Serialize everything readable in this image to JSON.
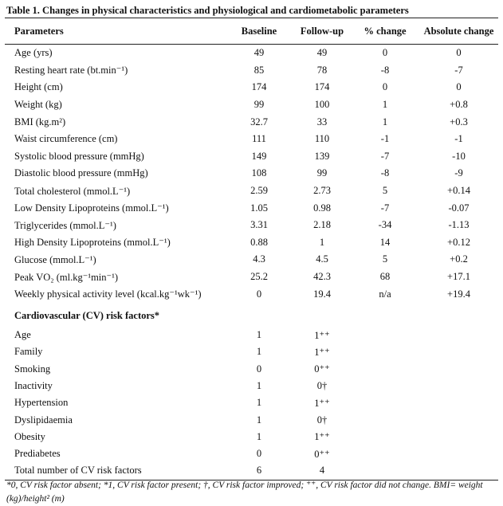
{
  "title": "Table 1. Changes in physical characteristics and physiological and cardiometabolic parameters",
  "header": [
    "Parameters",
    "Baseline",
    "Follow-up",
    "% change",
    "Absolute change"
  ],
  "rows": [
    [
      "Age (yrs)",
      "49",
      "49",
      "0",
      "0"
    ],
    [
      "Resting heart rate (bt.min⁻¹)",
      "85",
      "78",
      "-8",
      "-7"
    ],
    [
      "Height (cm)",
      "174",
      "174",
      "0",
      "0"
    ],
    [
      "Weight (kg)",
      "99",
      "100",
      "1",
      "+0.8"
    ],
    [
      "BMI (kg.m²)",
      "32.7",
      "33",
      "1",
      "+0.3"
    ],
    [
      "Waist circumference (cm)",
      "111",
      "110",
      "-1",
      "-1"
    ],
    [
      "Systolic blood pressure (mmHg)",
      "149",
      "139",
      "-7",
      "-10"
    ],
    [
      "Diastolic blood pressure (mmHg)",
      "108",
      "99",
      "-8",
      "-9"
    ],
    [
      "Total cholesterol (mmol.L⁻¹)",
      "2.59",
      "2.73",
      "5",
      "+0.14"
    ],
    [
      "Low Density Lipoproteins (mmol.L⁻¹)",
      "1.05",
      "0.98",
      "-7",
      "-0.07"
    ],
    [
      "Triglycerides (mmol.L⁻¹)",
      "3.31",
      "2.18",
      "-34",
      "-1.13"
    ],
    [
      "High Density Lipoproteins (mmol.L⁻¹)",
      "0.88",
      "1",
      "14",
      "+0.12"
    ],
    [
      "Glucose (mmol.L⁻¹)",
      "4.3",
      "4.5",
      "5",
      "+0.2"
    ],
    [
      "Peak VO₂ (ml.kg⁻¹min⁻¹)",
      "25.2",
      "42.3",
      "68",
      "+17.1"
    ],
    [
      "Weekly physical activity level (kcal.kg⁻¹wk⁻¹)",
      "0",
      "19.4",
      "n/a",
      "+19.4"
    ]
  ],
  "section_title": "Cardiovascular (CV) risk factors*",
  "risk_rows": [
    [
      "Age",
      "1",
      "1⁺⁺"
    ],
    [
      "Family",
      "1",
      "1⁺⁺"
    ],
    [
      "Smoking",
      "0",
      "0⁺⁺"
    ],
    [
      "Inactivity",
      "1",
      "0†"
    ],
    [
      "Hypertension",
      "1",
      "1⁺⁺"
    ],
    [
      "Dyslipidaemia",
      "1",
      "0†"
    ],
    [
      "Obesity",
      "1",
      "1⁺⁺"
    ],
    [
      "Prediabetes",
      "0",
      "0⁺⁺"
    ],
    [
      "Total  number of CV risk factors",
      "6",
      "4"
    ]
  ],
  "footnote": "*0, CV risk factor absent; *1, CV risk factor present; †, CV risk factor improved; ⁺⁺, CV risk factor did not change. BMI= weight (kg)/height² (m)"
}
